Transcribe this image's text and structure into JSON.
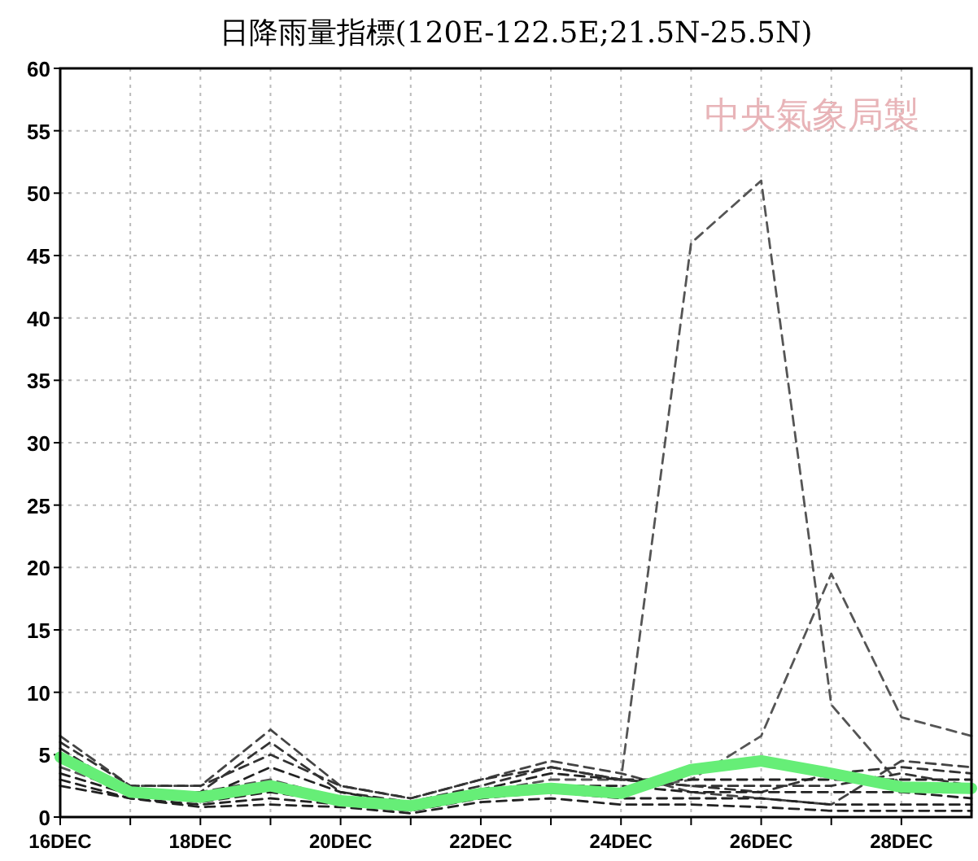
{
  "chart_data": {
    "type": "line",
    "title": "日降雨量指標(120E-122.5E;21.5N-25.5N)",
    "annotations": [
      "中央氣象局製"
    ],
    "categories": [
      "16DEC",
      null,
      "18DEC",
      null,
      "20DEC",
      null,
      "22DEC",
      null,
      "24DEC",
      null,
      "26DEC",
      null,
      "28DEC",
      null
    ],
    "ylim": [
      0,
      60
    ],
    "yticks": [
      0,
      5,
      10,
      15,
      20,
      25,
      30,
      35,
      40,
      45,
      50,
      55,
      60
    ],
    "grid": true,
    "line_style": "dashed",
    "marker": "none",
    "series": [
      {
        "color": "#555555",
        "values": [
          5,
          2,
          2,
          3,
          1.5,
          1,
          2,
          3,
          3,
          46,
          51,
          9,
          2.5,
          2.5
        ]
      },
      {
        "color": "#555555",
        "values": [
          4,
          2,
          1.5,
          2.5,
          1.5,
          1,
          2,
          2.5,
          2,
          3,
          6.5,
          19.5,
          8,
          6.5
        ]
      },
      {
        "color": "#444444",
        "values": [
          6.5,
          2.5,
          2.5,
          7,
          2.5,
          1.5,
          3,
          4.5,
          3.5,
          2,
          1.5,
          1,
          4.5,
          4
        ]
      },
      {
        "color": "#333333",
        "values": [
          5.5,
          2,
          2,
          6,
          2,
          1.2,
          2.5,
          4,
          3,
          2.5,
          2,
          3.5,
          4,
          3.5
        ]
      },
      {
        "color": "#222222",
        "values": [
          4.5,
          2,
          1.5,
          4,
          2,
          1,
          2.2,
          3.5,
          3,
          3,
          3,
          3,
          3,
          3
        ]
      },
      {
        "color": "#222222",
        "values": [
          3.5,
          1.8,
          1.2,
          2,
          1.2,
          0.8,
          1.8,
          2.5,
          2.5,
          2,
          2,
          2,
          2,
          1.5
        ]
      },
      {
        "color": "#222222",
        "values": [
          3,
          1.5,
          1,
          1.5,
          1,
          0.5,
          1.5,
          2,
          1.5,
          1.5,
          1.5,
          1,
          1,
          1
        ]
      },
      {
        "color": "#222222",
        "values": [
          2.5,
          1.5,
          0.8,
          1,
          0.8,
          0.3,
          1.2,
          1.5,
          1,
          1,
          0.8,
          0.5,
          0.5,
          0.5
        ]
      },
      {
        "color": "#333333",
        "values": [
          6,
          2.5,
          2.5,
          5,
          2.5,
          1.5,
          3,
          4,
          3,
          2.5,
          2.5,
          2.5,
          3.5,
          2.5
        ]
      },
      {
        "color": "#66ee77",
        "line_style": "solid",
        "values": [
          4.8,
          2,
          1.6,
          2.5,
          1.3,
          0.9,
          1.9,
          2.3,
          1.9,
          3.8,
          4.5,
          3.5,
          2.4,
          2.3
        ]
      }
    ]
  }
}
